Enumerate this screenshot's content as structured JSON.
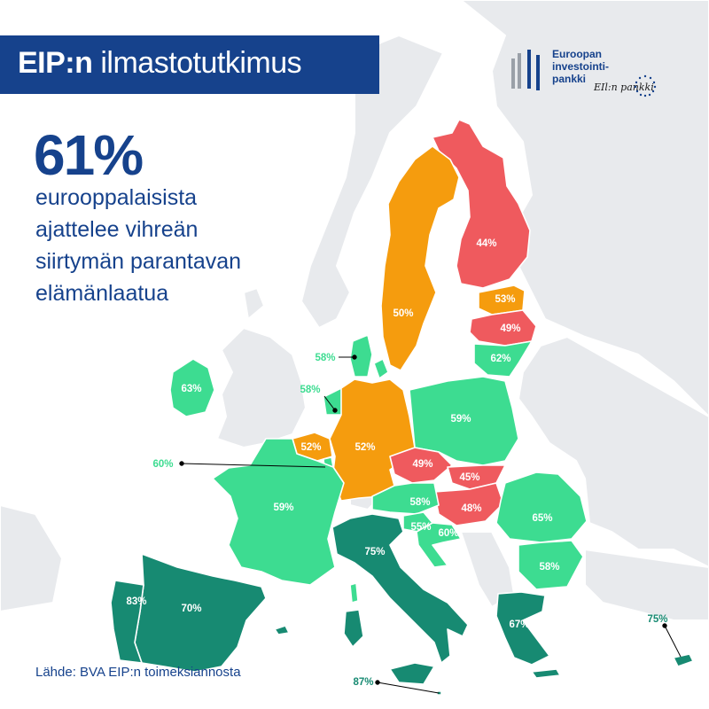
{
  "header": {
    "title_bold": "EIP:n",
    "title_rest": " ilmastotutkimus"
  },
  "logo": {
    "line1": "Euroopan",
    "line2": "investointi-",
    "line3": "pankki",
    "signature": "EIl:n pankki"
  },
  "headline": {
    "stat": "61%",
    "line1": "eurooppalaisista",
    "line2": "ajattelee vihreän",
    "line3": "siirtymän parantavan",
    "line4": "elämänlaatua"
  },
  "source": "Lähde: BVA EIP:n toimeksiannosta",
  "colors": {
    "title_bg": "#16428c",
    "text_blue": "#16428c",
    "red": "#ef5a5e",
    "orange": "#f59c0e",
    "light_green": "#3ddc91",
    "dark_teal": "#178a72",
    "land_gray": "#e8eaed",
    "sea": "#ffffff"
  },
  "countries": [
    {
      "id": "finland",
      "value": "44%",
      "color": "red"
    },
    {
      "id": "sweden",
      "value": "50%",
      "color": "orange"
    },
    {
      "id": "estonia",
      "value": "53%",
      "color": "orange"
    },
    {
      "id": "latvia",
      "value": "49%",
      "color": "red"
    },
    {
      "id": "lithuania",
      "value": "62%",
      "color": "light_green"
    },
    {
      "id": "denmark",
      "value": "58%",
      "color": "light_green"
    },
    {
      "id": "ireland",
      "value": "63%",
      "color": "light_green"
    },
    {
      "id": "netherlands",
      "value": "58%",
      "color": "light_green"
    },
    {
      "id": "belgium",
      "value": "52%",
      "color": "orange"
    },
    {
      "id": "luxembourg",
      "value": "60%",
      "color": "light_green"
    },
    {
      "id": "germany",
      "value": "52%",
      "color": "orange"
    },
    {
      "id": "poland",
      "value": "59%",
      "color": "light_green"
    },
    {
      "id": "czechia",
      "value": "49%",
      "color": "red"
    },
    {
      "id": "slovakia",
      "value": "45%",
      "color": "red"
    },
    {
      "id": "hungary",
      "value": "48%",
      "color": "red"
    },
    {
      "id": "austria",
      "value": "58%",
      "color": "light_green"
    },
    {
      "id": "slovenia",
      "value": "55%",
      "color": "light_green"
    },
    {
      "id": "croatia",
      "value": "60%",
      "color": "light_green"
    },
    {
      "id": "romania",
      "value": "65%",
      "color": "light_green"
    },
    {
      "id": "bulgaria",
      "value": "58%",
      "color": "light_green"
    },
    {
      "id": "france",
      "value": "59%",
      "color": "light_green"
    },
    {
      "id": "italy",
      "value": "75%",
      "color": "dark_teal"
    },
    {
      "id": "spain",
      "value": "70%",
      "color": "dark_teal"
    },
    {
      "id": "portugal",
      "value": "83%",
      "color": "dark_teal"
    },
    {
      "id": "greece",
      "value": "67%",
      "color": "dark_teal"
    },
    {
      "id": "cyprus",
      "value": "75%",
      "color": "dark_teal"
    },
    {
      "id": "malta",
      "value": "87%",
      "color": "dark_teal"
    }
  ]
}
